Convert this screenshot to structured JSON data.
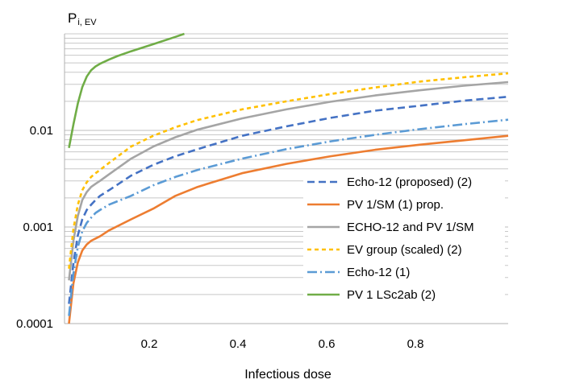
{
  "chart_data": {
    "type": "line",
    "title": "",
    "xlabel": "Infectious dose",
    "ylabel": {
      "main": "P",
      "sub": "i, EV"
    },
    "y_scale": "log",
    "xlim": [
      0,
      1
    ],
    "ylim": [
      0.0001,
      0.1
    ],
    "x_ticks": [
      {
        "value": 0.2,
        "label": "0.2"
      },
      {
        "value": 0.4,
        "label": "0.4"
      },
      {
        "value": 0.6,
        "label": "0.6"
      },
      {
        "value": 0.8,
        "label": "0.8"
      }
    ],
    "y_ticks": [
      {
        "value": 0.0001,
        "label": "0.0001"
      },
      {
        "value": 0.001,
        "label": "0.001"
      },
      {
        "value": 0.01,
        "label": "0.01"
      }
    ],
    "grid": true,
    "legend_position": "bottom-right",
    "x": [
      0.01,
      0.02,
      0.03,
      0.04,
      0.05,
      0.06,
      0.07,
      0.08,
      0.1,
      0.15,
      0.2,
      0.25,
      0.3,
      0.4,
      0.5,
      0.6,
      0.7,
      0.8,
      0.9,
      1.0
    ],
    "series": [
      {
        "name": "Echo-12 (proposed) (2)",
        "color": "#4472C4",
        "dash": "9,5",
        "values": [
          0.00016,
          0.00042,
          0.00082,
          0.0012,
          0.0015,
          0.0017,
          0.0019,
          0.0021,
          0.0024,
          0.0034,
          0.0044,
          0.0054,
          0.0064,
          0.0088,
          0.011,
          0.0135,
          0.016,
          0.018,
          0.0203,
          0.0223
        ]
      },
      {
        "name": "PV 1/SM (1) prop.",
        "color": "#ED7D31",
        "dash": "",
        "values": [
          0.0001,
          0.00026,
          0.00043,
          0.00057,
          0.00066,
          0.00072,
          0.00076,
          0.0008,
          0.00092,
          0.0012,
          0.00155,
          0.0021,
          0.0026,
          0.0036,
          0.0045,
          0.0054,
          0.0063,
          0.0071,
          0.0079,
          0.0088
        ]
      },
      {
        "name": "ECHO-12 and PV 1/SM",
        "color": "#A5A5A5",
        "dash": "",
        "values": [
          0.00028,
          0.00072,
          0.0013,
          0.0019,
          0.0023,
          0.0026,
          0.0028,
          0.003,
          0.0035,
          0.0051,
          0.0068,
          0.0085,
          0.0102,
          0.0133,
          0.0165,
          0.0198,
          0.023,
          0.026,
          0.029,
          0.0316
        ]
      },
      {
        "name": "EV group (scaled) (2)",
        "color": "#FFC000",
        "dash": "5,4",
        "values": [
          0.00037,
          0.00095,
          0.0017,
          0.0024,
          0.0029,
          0.0033,
          0.0036,
          0.0039,
          0.0046,
          0.0068,
          0.0088,
          0.0108,
          0.0128,
          0.0165,
          0.02,
          0.0238,
          0.0278,
          0.032,
          0.0355,
          0.039
        ]
      },
      {
        "name": "Echo-12 (1)",
        "color": "#5B9BD5",
        "dash": "12,4,2,4",
        "values": [
          0.00012,
          0.00033,
          0.00062,
          0.0009,
          0.0011,
          0.00125,
          0.0014,
          0.0015,
          0.0017,
          0.0021,
          0.0027,
          0.0033,
          0.0039,
          0.0051,
          0.0064,
          0.0077,
          0.009,
          0.0103,
          0.0116,
          0.0129
        ]
      },
      {
        "name": "PV 1 LSc2ab (2)",
        "color": "#70AD47",
        "dash": "",
        "x": [
          0.01,
          0.02,
          0.03,
          0.04,
          0.05,
          0.06,
          0.07,
          0.08,
          0.1,
          0.12,
          0.15,
          0.2,
          0.25,
          0.27
        ],
        "values": [
          0.0066,
          0.0115,
          0.019,
          0.028,
          0.036,
          0.042,
          0.046,
          0.049,
          0.054,
          0.059,
          0.066,
          0.078,
          0.093,
          0.1
        ]
      }
    ]
  }
}
